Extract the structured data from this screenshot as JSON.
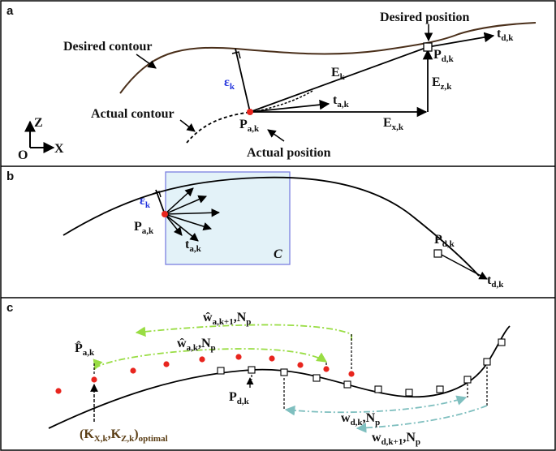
{
  "colors": {
    "curve": "#4a2f1a",
    "line": "#000000",
    "error": "#2233dd",
    "point": "#e8251e",
    "box_fill": "#e3f2f8",
    "box_stroke": "#7b7fe0",
    "green": "#99dd44",
    "teal": "#7fbfbf"
  },
  "panel_a": {
    "letter": "a",
    "desired_position": "Desired position",
    "desired_contour": "Desired contour",
    "actual_contour": "Actual contour",
    "actual_position": "Actual position",
    "eps": {
      "base": "ε",
      "sub": "k"
    },
    "E": {
      "base": "E",
      "sub": "k"
    },
    "Ez": {
      "base": "E",
      "sub": "z,k"
    },
    "Ex": {
      "base": "E",
      "sub": "x,k"
    },
    "Pd": {
      "base": "P",
      "sub": "d,k"
    },
    "Pa": {
      "base": "P",
      "sub": "a,k"
    },
    "td": {
      "base": "t",
      "sub": "d,k"
    },
    "ta": {
      "base": "t",
      "sub": "a,k"
    },
    "axis_z": "Z",
    "axis_x": "X",
    "origin": "O"
  },
  "panel_b": {
    "letter": "b",
    "eps": {
      "base": "ε",
      "sub": "k"
    },
    "Pa": {
      "base": "P",
      "sub": "a,k"
    },
    "ta": {
      "base": "t",
      "sub": "a,k"
    },
    "Pd": {
      "base": "P",
      "sub": "d,k"
    },
    "td": {
      "base": "t",
      "sub": "d,k"
    },
    "C": "C"
  },
  "panel_c": {
    "letter": "c",
    "w_hat_k1": {
      "base": "ŵ",
      "sub": "a,k+1",
      "tail": ",N",
      "tail_sub": "p"
    },
    "w_hat_k": {
      "base": "ŵ",
      "sub": "a,k",
      "tail": ",N",
      "tail_sub": "p"
    },
    "P_hat": {
      "base": "P̂",
      "sub": "a,k"
    },
    "Pd": {
      "base": "P",
      "sub": "d,k"
    },
    "w_dk": {
      "base": "w",
      "sub": "d,k",
      "tail": ",N",
      "tail_sub": "p"
    },
    "w_dk1": {
      "base": "w",
      "sub": "d,k+1",
      "tail": ",N",
      "tail_sub": "p"
    },
    "K_open": "(K",
    "K_sub1": "X,k",
    "K_mid": ",K",
    "K_sub2": "Z,k",
    "K_close": ")",
    "K_sub3": "optimal"
  }
}
